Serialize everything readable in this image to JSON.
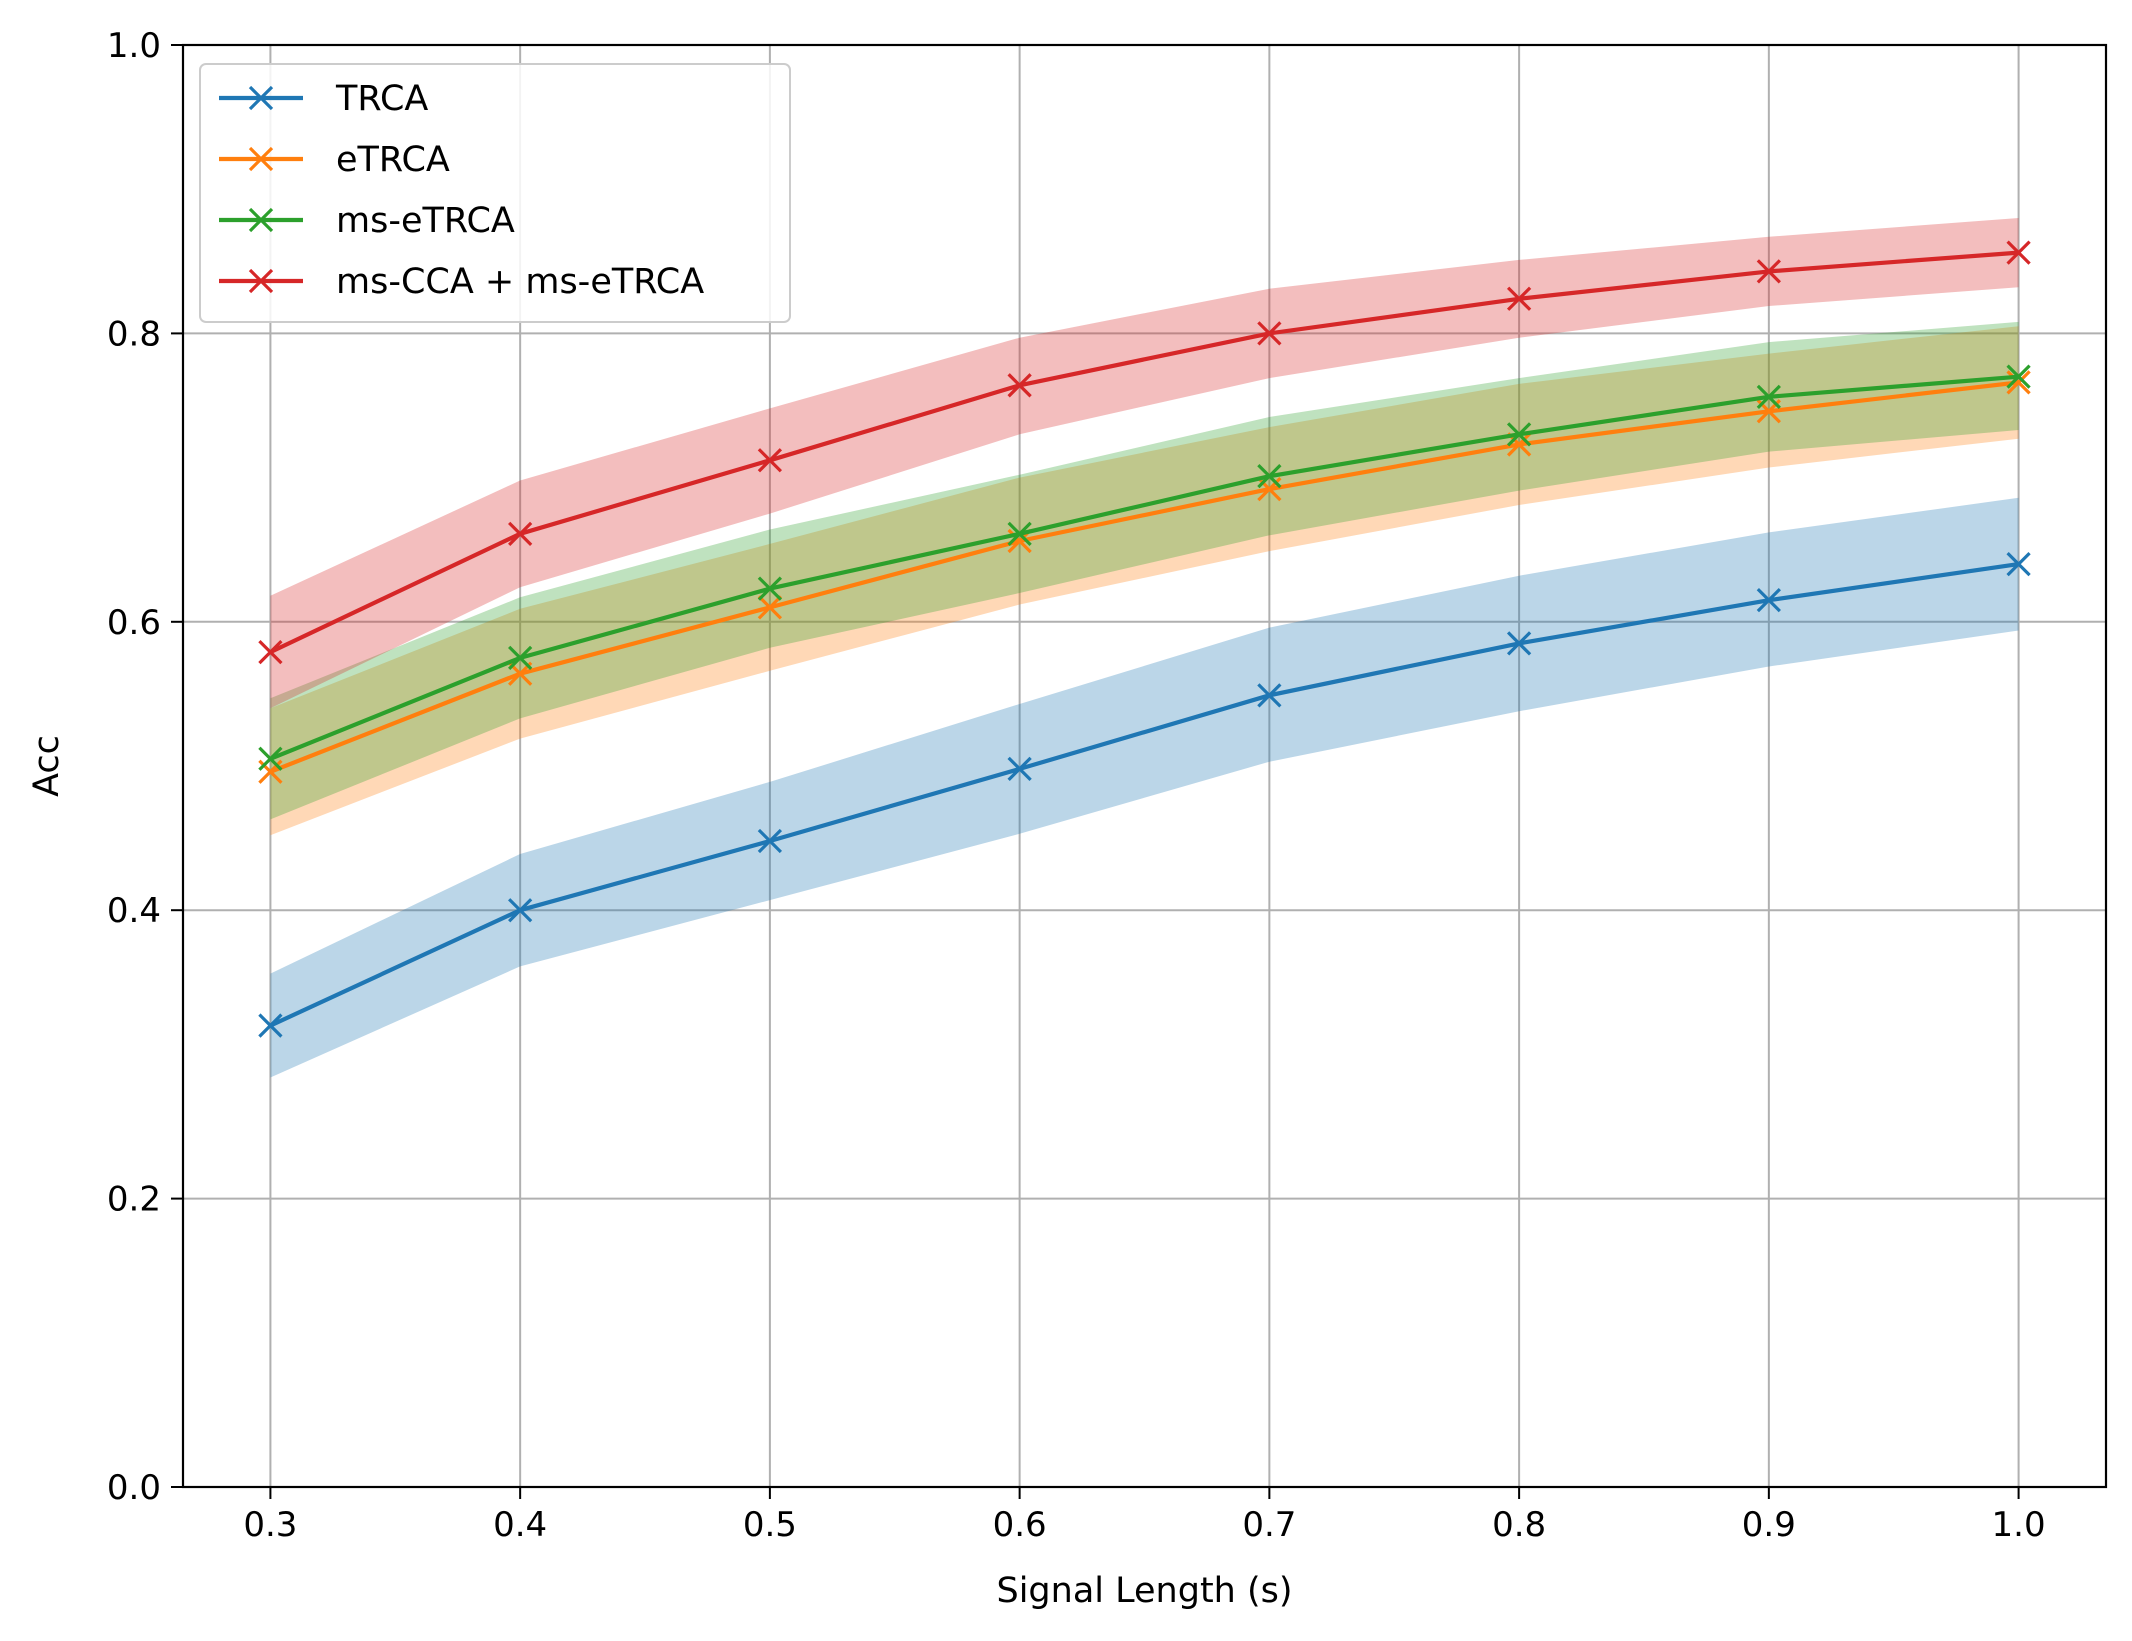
{
  "chart_data": {
    "type": "line",
    "xlabel": "Signal Length (s)",
    "ylabel": "Acc",
    "xlim": [
      0.265,
      1.035
    ],
    "ylim": [
      0.0,
      1.0
    ],
    "x": [
      0.3,
      0.4,
      0.5,
      0.6,
      0.7,
      0.8,
      0.9,
      1.0
    ],
    "x_ticks": [
      "0.3",
      "0.4",
      "0.5",
      "0.6",
      "0.7",
      "0.8",
      "0.9",
      "1.0"
    ],
    "y_ticks": [
      "0.0",
      "0.2",
      "0.4",
      "0.6",
      "0.8",
      "1.0"
    ],
    "grid": true,
    "legend_position": "top-left",
    "marker": "x",
    "series": [
      {
        "name": "TRCA",
        "color": "#1f77b4",
        "values": [
          0.32,
          0.4,
          0.448,
          0.498,
          0.549,
          0.585,
          0.615,
          0.64
        ],
        "lower": [
          0.284,
          0.361,
          0.407,
          0.453,
          0.503,
          0.538,
          0.569,
          0.594
        ],
        "upper": [
          0.356,
          0.439,
          0.489,
          0.543,
          0.596,
          0.632,
          0.662,
          0.686
        ]
      },
      {
        "name": "eTRCA",
        "color": "#ff7f0e",
        "values": [
          0.496,
          0.564,
          0.61,
          0.656,
          0.692,
          0.723,
          0.746,
          0.766
        ],
        "lower": [
          0.452,
          0.519,
          0.566,
          0.612,
          0.649,
          0.681,
          0.707,
          0.727
        ],
        "upper": [
          0.54,
          0.609,
          0.654,
          0.7,
          0.735,
          0.765,
          0.786,
          0.805
        ]
      },
      {
        "name": "ms-eTRCA",
        "color": "#2ca02c",
        "values": [
          0.505,
          0.575,
          0.623,
          0.661,
          0.701,
          0.73,
          0.756,
          0.77
        ],
        "lower": [
          0.463,
          0.533,
          0.582,
          0.62,
          0.66,
          0.691,
          0.718,
          0.733
        ],
        "upper": [
          0.547,
          0.617,
          0.664,
          0.702,
          0.742,
          0.769,
          0.794,
          0.808
        ]
      },
      {
        "name": "ms-CCA + ms-eTRCA",
        "color": "#d62728",
        "values": [
          0.579,
          0.661,
          0.712,
          0.764,
          0.8,
          0.824,
          0.843,
          0.856
        ],
        "lower": [
          0.54,
          0.624,
          0.675,
          0.73,
          0.769,
          0.797,
          0.819,
          0.832
        ],
        "upper": [
          0.618,
          0.698,
          0.748,
          0.797,
          0.831,
          0.851,
          0.867,
          0.88
        ]
      }
    ]
  }
}
